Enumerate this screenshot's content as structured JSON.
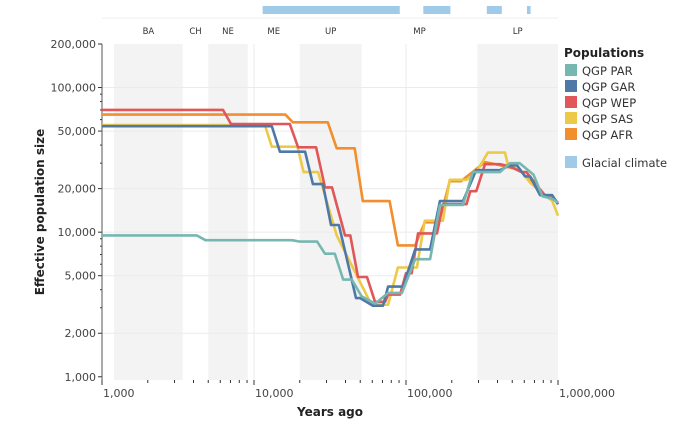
{
  "chart_data": {
    "type": "line",
    "xlabel": "Years ago",
    "ylabel": "Effective population size",
    "x_scale": "log",
    "y_scale": "log",
    "xlim": [
      1000,
      1000000
    ],
    "ylim": [
      950,
      200000
    ],
    "x_ticks": [
      {
        "v": 1000,
        "label": "1,000"
      },
      {
        "v": 10000,
        "label": "10,000"
      },
      {
        "v": 100000,
        "label": "100,000"
      },
      {
        "v": 1000000,
        "label": "1,000,000"
      }
    ],
    "y_ticks": [
      {
        "v": 200000,
        "label": "200,000"
      },
      {
        "v": 100000,
        "label": "100,000"
      },
      {
        "v": 50000,
        "label": "50,000"
      },
      {
        "v": 20000,
        "label": "20,000"
      },
      {
        "v": 10000,
        "label": "10,000"
      },
      {
        "v": 5000,
        "label": "5,000"
      },
      {
        "v": 2000,
        "label": "2,000"
      },
      {
        "v": 1000,
        "label": "1,000"
      }
    ],
    "grid": true,
    "legend": {
      "title": "Populations",
      "position": "right"
    },
    "periods": [
      {
        "label": "BA",
        "start": 1200,
        "end": 3400,
        "shaded": true
      },
      {
        "label": "CH",
        "start": 3400,
        "end": 5000,
        "shaded": false
      },
      {
        "label": "NE",
        "start": 5000,
        "end": 9100,
        "shaded": true
      },
      {
        "label": "ME",
        "start": 9100,
        "end": 20000,
        "shaded": false
      },
      {
        "label": "UP",
        "start": 20000,
        "end": 51000,
        "shaded": true
      },
      {
        "label": "MP",
        "start": 51000,
        "end": 295000,
        "shaded": false
      },
      {
        "label": "LP",
        "start": 295000,
        "end": 1000000,
        "shaded": true
      }
    ],
    "glacial": {
      "name": "Glacial climate",
      "color": "#a0cbe8",
      "intervals": [
        [
          11400,
          91000
        ],
        [
          130000,
          196000
        ],
        [
          340000,
          427000
        ],
        [
          625000,
          660000
        ]
      ]
    },
    "series": [
      {
        "name": "QGP AFR",
        "color": "#f28e2b",
        "points": [
          [
            1000,
            65000
          ],
          [
            16100,
            65000
          ],
          [
            18000,
            57500
          ],
          [
            30600,
            57500
          ],
          [
            35000,
            38000
          ],
          [
            46000,
            38000
          ],
          [
            52000,
            16400
          ],
          [
            78000,
            16400
          ],
          [
            88500,
            8100
          ],
          [
            115000,
            8100
          ],
          [
            133000,
            11700
          ],
          [
            165000,
            11700
          ],
          [
            194000,
            22500
          ],
          [
            230000,
            22500
          ],
          [
            331000,
            30500
          ],
          [
            420000,
            29000
          ],
          [
            560000,
            27000
          ],
          [
            655000,
            22500
          ],
          [
            820000,
            18000
          ],
          [
            914000,
            17500
          ],
          [
            1000000,
            16000
          ]
        ]
      },
      {
        "name": "QGP SAS",
        "color": "#edc948",
        "points": [
          [
            1000,
            55000
          ],
          [
            11800,
            55000
          ],
          [
            13100,
            39000
          ],
          [
            19300,
            39000
          ],
          [
            21200,
            26000
          ],
          [
            26400,
            26000
          ],
          [
            35000,
            9500
          ],
          [
            50000,
            4500
          ],
          [
            58000,
            3300
          ],
          [
            65000,
            3150
          ],
          [
            76200,
            3150
          ],
          [
            88500,
            5700
          ],
          [
            118000,
            5700
          ],
          [
            133000,
            12000
          ],
          [
            175000,
            12000
          ],
          [
            194000,
            23000
          ],
          [
            250000,
            23000
          ],
          [
            290000,
            26000
          ],
          [
            346000,
            35500
          ],
          [
            448000,
            35500
          ],
          [
            469000,
            29000
          ],
          [
            563000,
            27000
          ],
          [
            655000,
            22000
          ],
          [
            820000,
            18000
          ],
          [
            914000,
            16500
          ],
          [
            1000000,
            13000
          ]
        ]
      },
      {
        "name": "QGP WEP",
        "color": "#e15759",
        "points": [
          [
            1000,
            70000
          ],
          [
            6250,
            70000
          ],
          [
            7060,
            56000
          ],
          [
            17200,
            56000
          ],
          [
            19500,
            38600
          ],
          [
            25600,
            38600
          ],
          [
            29300,
            20400
          ],
          [
            32600,
            20400
          ],
          [
            39700,
            9500
          ],
          [
            43000,
            9500
          ],
          [
            48300,
            4900
          ],
          [
            55400,
            4900
          ],
          [
            62500,
            3300
          ],
          [
            73000,
            3300
          ],
          [
            76200,
            3700
          ],
          [
            91400,
            3700
          ],
          [
            100000,
            5200
          ],
          [
            109000,
            5200
          ],
          [
            120000,
            9800
          ],
          [
            160000,
            9800
          ],
          [
            175000,
            15600
          ],
          [
            250000,
            15600
          ],
          [
            265000,
            19200
          ],
          [
            290000,
            19200
          ],
          [
            331000,
            29500
          ],
          [
            415000,
            29500
          ],
          [
            483000,
            28500
          ],
          [
            575000,
            26000
          ],
          [
            620000,
            26000
          ],
          [
            700000,
            22000
          ],
          [
            820000,
            18000
          ],
          [
            914000,
            18000
          ],
          [
            1000000,
            15600
          ]
        ]
      },
      {
        "name": "QGP GAR",
        "color": "#4e79a7",
        "points": [
          [
            1000,
            54000
          ],
          [
            13100,
            54000
          ],
          [
            14800,
            36000
          ],
          [
            21700,
            36000
          ],
          [
            24400,
            21500
          ],
          [
            28400,
            21500
          ],
          [
            32100,
            11200
          ],
          [
            36200,
            11200
          ],
          [
            46900,
            3500
          ],
          [
            50000,
            3500
          ],
          [
            60600,
            3100
          ],
          [
            70600,
            3100
          ],
          [
            76200,
            4200
          ],
          [
            95600,
            4200
          ],
          [
            115000,
            7600
          ],
          [
            144000,
            7600
          ],
          [
            167000,
            16400
          ],
          [
            237000,
            16400
          ],
          [
            289000,
            26800
          ],
          [
            415000,
            26800
          ],
          [
            483000,
            29000
          ],
          [
            537000,
            29000
          ],
          [
            607000,
            24300
          ],
          [
            655000,
            24300
          ],
          [
            762000,
            18000
          ],
          [
            914000,
            18000
          ],
          [
            1000000,
            15600
          ]
        ]
      },
      {
        "name": "QGP PAR",
        "color": "#76b7b2",
        "points": [
          [
            1000,
            9500
          ],
          [
            4200,
            9500
          ],
          [
            4800,
            8800
          ],
          [
            17800,
            8800
          ],
          [
            20000,
            8600
          ],
          [
            26000,
            8600
          ],
          [
            29300,
            7100
          ],
          [
            34000,
            7100
          ],
          [
            38600,
            4700
          ],
          [
            44000,
            4700
          ],
          [
            51000,
            3600
          ],
          [
            62500,
            3200
          ],
          [
            76200,
            3800
          ],
          [
            94000,
            3800
          ],
          [
            115000,
            6500
          ],
          [
            144000,
            6500
          ],
          [
            167000,
            15400
          ],
          [
            237000,
            15400
          ],
          [
            275000,
            26000
          ],
          [
            415000,
            26000
          ],
          [
            483000,
            30000
          ],
          [
            560000,
            30000
          ],
          [
            690000,
            25000
          ],
          [
            790000,
            17700
          ],
          [
            914000,
            17000
          ],
          [
            1000000,
            16000
          ]
        ]
      }
    ],
    "legend_order": [
      "QGP PAR",
      "QGP GAR",
      "QGP WEP",
      "QGP SAS",
      "QGP AFR"
    ]
  }
}
